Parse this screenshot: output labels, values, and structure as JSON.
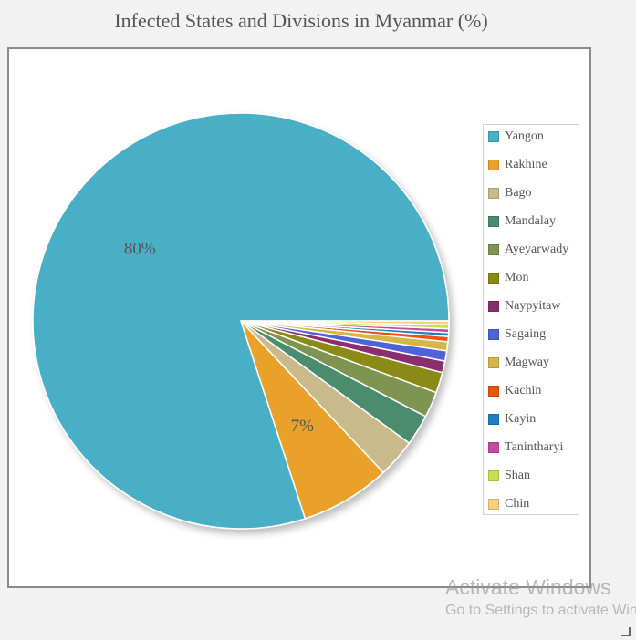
{
  "chart_data": {
    "type": "pie",
    "title": "Infected States and Divisions in Myanmar (%)",
    "legend_position": "right",
    "categories": [
      "Yangon",
      "Rakhine",
      "Bago",
      "Mandalay",
      "Ayeyarwady",
      "Mon",
      "Naypyitaw",
      "Sagaing",
      "Magway",
      "Kachin",
      "Kayin",
      "Tanintharyi",
      "Shan",
      "Chin"
    ],
    "values": [
      80,
      7,
      3,
      2.4,
      2,
      1.6,
      0.9,
      0.8,
      0.7,
      0.4,
      0.3,
      0.3,
      0.3,
      0.3
    ],
    "data_labels": [
      "80%",
      "7%",
      "",
      "",
      "",
      "",
      "",
      "",
      "",
      "",
      "",
      "",
      "",
      ""
    ],
    "colors": [
      "#4aafc6",
      "#eaa12c",
      "#c9b98b",
      "#4b8c6e",
      "#7f9451",
      "#8c8a12",
      "#8a2d6e",
      "#4f63d9",
      "#d6b64a",
      "#e8560c",
      "#1b7fc1",
      "#c44b9a",
      "#c8de4e",
      "#f7cf7e"
    ]
  },
  "watermark": {
    "line1": "Activate Windows",
    "line2": "Go to Settings to activate Windows."
  }
}
